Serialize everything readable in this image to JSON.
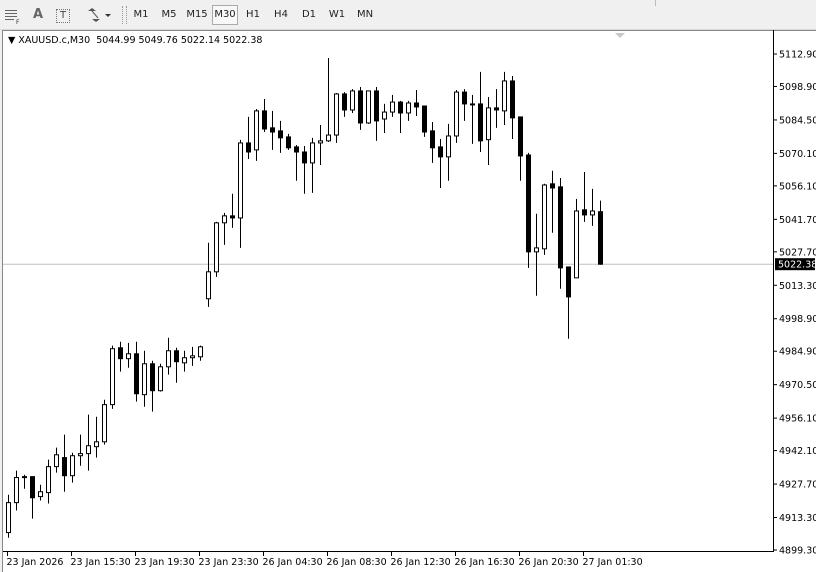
{
  "toolbar": {
    "icons": [
      "grid-icon",
      "text-icon",
      "text-label-icon",
      "arrows-icon"
    ],
    "text_icon_label": "A",
    "text_label_icon_label": "T",
    "timeframes": [
      "M1",
      "M5",
      "M15",
      "M30",
      "H1",
      "H4",
      "D1",
      "W1",
      "MN"
    ],
    "active_timeframe": "M30"
  },
  "chart": {
    "symbol": "XAUUSD.c,M30",
    "ohlc_text": "5044.99 5049.76 5022.14 5022.38",
    "current_price_label": "5022.38",
    "colors": {
      "bull_body": "#ffffff",
      "bear_body": "#000000",
      "outline": "#000000",
      "price_line": "#c0c0c0",
      "background": "#ffffff"
    }
  },
  "chart_data": {
    "type": "candlestick",
    "ylim": [
      4899.3,
      5112.9
    ],
    "y_ticks": [
      "5112.90",
      "5098.90",
      "5084.50",
      "5070.10",
      "5056.10",
      "5041.70",
      "5027.70",
      "5013.30",
      "4998.90",
      "4984.90",
      "4970.50",
      "4956.10",
      "4942.10",
      "4927.70",
      "4913.30",
      "4899.30"
    ],
    "x_ticks": [
      {
        "index": 0,
        "label": "23 Jan 2026"
      },
      {
        "index": 8,
        "label": "23 Jan 15:30"
      },
      {
        "index": 16,
        "label": "23 Jan 19:30"
      },
      {
        "index": 24,
        "label": "23 Jan 23:30"
      },
      {
        "index": 32,
        "label": "26 Jan 04:30"
      },
      {
        "index": 40,
        "label": "26 Jan 08:30"
      },
      {
        "index": 48,
        "label": "26 Jan 12:30"
      },
      {
        "index": 56,
        "label": "26 Jan 16:30"
      },
      {
        "index": 64,
        "label": "26 Jan 20:30"
      },
      {
        "index": 72,
        "label": "27 Jan 01:30"
      }
    ],
    "last_price": 5022.38,
    "candles_ohlc": [
      [
        4906.8,
        4923.1,
        4904.6,
        4919.7
      ],
      [
        4919.7,
        4933.5,
        4916.3,
        4930.5
      ],
      [
        4930.5,
        4931.7,
        4925.7,
        4930.9
      ],
      [
        4930.9,
        4930.9,
        4912.8,
        4921.8
      ],
      [
        4922.3,
        4927.4,
        4920.6,
        4924.4
      ],
      [
        4924.0,
        4938.2,
        4919.3,
        4935.2
      ],
      [
        4935.2,
        4943.4,
        4932.6,
        4940.3
      ],
      [
        4939.1,
        4949.0,
        4924.4,
        4931.3
      ],
      [
        4931.3,
        4941.2,
        4928.3,
        4939.9
      ],
      [
        4939.9,
        4949.0,
        4935.6,
        4940.8
      ],
      [
        4940.8,
        4957.6,
        4933.5,
        4944.2
      ],
      [
        4943.8,
        4956.7,
        4939.1,
        4945.9
      ],
      [
        4945.9,
        4964.0,
        4944.7,
        4961.9
      ],
      [
        4961.9,
        4987.3,
        4960.1,
        4986.0
      ],
      [
        4986.4,
        4989.0,
        4976.1,
        4981.7
      ],
      [
        4981.7,
        4988.5,
        4977.8,
        4983.8
      ],
      [
        4983.8,
        4989.0,
        4963.2,
        4966.6
      ],
      [
        4966.2,
        4985.1,
        4961.0,
        4979.5
      ],
      [
        4979.5,
        4980.8,
        4958.9,
        4967.9
      ],
      [
        4967.9,
        4979.5,
        4967.5,
        4978.2
      ],
      [
        4978.2,
        4990.7,
        4974.8,
        4985.1
      ],
      [
        4985.1,
        4986.4,
        4971.3,
        4980.4
      ],
      [
        4979.9,
        4985.1,
        4976.1,
        4982.1
      ],
      [
        4982.1,
        4986.8,
        4978.6,
        4982.9
      ],
      [
        4982.5,
        4987.3,
        4980.8,
        4986.8
      ],
      [
        5007.5,
        5031.6,
        5004.0,
        5019.1
      ],
      [
        5019.1,
        5040.6,
        5016.9,
        5040.2
      ],
      [
        5040.2,
        5044.5,
        5030.7,
        5043.2
      ],
      [
        5043.2,
        5052.7,
        5038.0,
        5042.3
      ],
      [
        5042.3,
        5075.9,
        5029.4,
        5074.6
      ],
      [
        5074.6,
        5085.8,
        5067.7,
        5070.7
      ],
      [
        5071.6,
        5089.2,
        5066.9,
        5088.4
      ],
      [
        5088.4,
        5093.5,
        5079.3,
        5080.6
      ],
      [
        5081.1,
        5088.4,
        5071.6,
        5079.3
      ],
      [
        5079.8,
        5084.1,
        5070.3,
        5076.8
      ],
      [
        5077.2,
        5078.5,
        5071.6,
        5072.5
      ],
      [
        5072.9,
        5073.7,
        5058.3,
        5070.7
      ],
      [
        5070.7,
        5073.3,
        5052.7,
        5066.0
      ],
      [
        5066.0,
        5076.8,
        5053.1,
        5074.6
      ],
      [
        5074.6,
        5082.3,
        5065.1,
        5075.5
      ],
      [
        5075.5,
        5111.2,
        5075.0,
        5078.0
      ],
      [
        5078.0,
        5096.1,
        5074.6,
        5095.7
      ],
      [
        5095.7,
        5096.5,
        5085.8,
        5088.8
      ],
      [
        5088.8,
        5097.8,
        5087.5,
        5097.0
      ],
      [
        5097.0,
        5098.7,
        5080.2,
        5083.2
      ],
      [
        5083.2,
        5097.0,
        5082.8,
        5097.0
      ],
      [
        5097.0,
        5098.7,
        5075.5,
        5084.1
      ],
      [
        5084.9,
        5091.4,
        5078.9,
        5087.9
      ],
      [
        5087.9,
        5095.3,
        5085.8,
        5092.2
      ],
      [
        5092.2,
        5092.7,
        5078.9,
        5087.5
      ],
      [
        5087.5,
        5092.7,
        5084.1,
        5091.8
      ],
      [
        5091.8,
        5097.4,
        5086.2,
        5090.1
      ],
      [
        5090.5,
        5090.5,
        5077.2,
        5079.3
      ],
      [
        5079.8,
        5083.6,
        5066.0,
        5072.5
      ],
      [
        5072.9,
        5076.3,
        5055.2,
        5068.6
      ],
      [
        5068.6,
        5082.8,
        5058.3,
        5077.6
      ],
      [
        5077.6,
        5097.4,
        5074.6,
        5096.5
      ],
      [
        5096.5,
        5097.8,
        5084.1,
        5091.4
      ],
      [
        5091.4,
        5095.3,
        5074.2,
        5091.4
      ],
      [
        5091.4,
        5105.2,
        5070.7,
        5075.5
      ],
      [
        5076.0,
        5094.4,
        5065.1,
        5089.7
      ],
      [
        5089.7,
        5097.8,
        5081.1,
        5088.8
      ],
      [
        5088.4,
        5105.2,
        5082.3,
        5101.3
      ],
      [
        5101.3,
        5103.4,
        5076.3,
        5085.4
      ],
      [
        5085.8,
        5085.8,
        5058.3,
        5069.0
      ],
      [
        5069.4,
        5070.3,
        5020.8,
        5027.7
      ],
      [
        5027.7,
        5044.1,
        5008.8,
        5029.4
      ],
      [
        5029.0,
        5057.0,
        5026.4,
        5056.5
      ],
      [
        5057.0,
        5062.6,
        5035.9,
        5055.2
      ],
      [
        5055.7,
        5059.5,
        5011.8,
        5020.8
      ],
      [
        5021.2,
        5021.2,
        4990.3,
        5008.3
      ],
      [
        5016.5,
        5050.5,
        5016.5,
        5045.3
      ],
      [
        5045.8,
        5062.1,
        5040.6,
        5043.6
      ],
      [
        5043.6,
        5054.8,
        5038.9,
        5045.3
      ],
      [
        5044.99,
        5049.76,
        5022.14,
        5022.38
      ]
    ]
  }
}
